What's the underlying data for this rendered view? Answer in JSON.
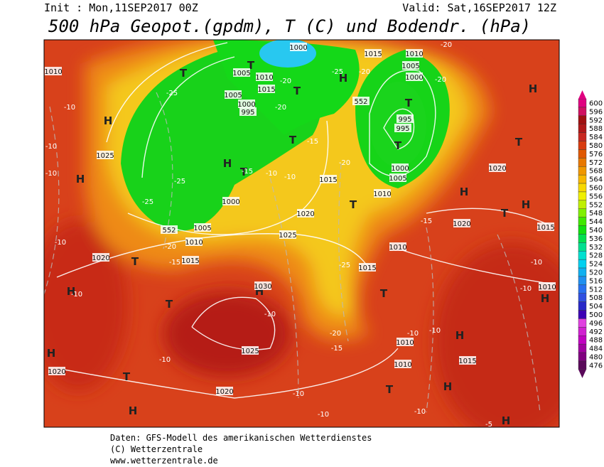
{
  "header": {
    "init": "Init : Mon,11SEP2017 00Z",
    "valid": "Valid: Sat,16SEP2017 12Z",
    "title": "500 hPa Geopot.(gpdm), T (C) und Bodendr. (hPa)"
  },
  "colorbar": {
    "ticks": [
      600,
      596,
      592,
      588,
      584,
      580,
      576,
      572,
      568,
      564,
      560,
      556,
      552,
      548,
      544,
      540,
      536,
      532,
      528,
      524,
      520,
      516,
      512,
      508,
      504,
      500,
      496,
      492,
      488,
      484,
      480,
      476
    ],
    "colors": [
      "#e00080",
      "#d01060",
      "#a01010",
      "#b01818",
      "#c82820",
      "#d83c10",
      "#e05800",
      "#e87800",
      "#f09800",
      "#f8b800",
      "#f8d800",
      "#f0f000",
      "#c0f000",
      "#80f000",
      "#40e800",
      "#10e010",
      "#00e050",
      "#00e090",
      "#00e0d0",
      "#00d0f0",
      "#10b0f0",
      "#2090f0",
      "#2870f0",
      "#3050e0",
      "#2828c8",
      "#3c00b4",
      "#e040e0",
      "#d020d0",
      "#c000c0",
      "#a000a0",
      "#800080",
      "#5a0a5a"
    ]
  },
  "map": {
    "highs_lows": [
      "H",
      "H",
      "H",
      "H",
      "H",
      "H",
      "H",
      "H",
      "H",
      "H",
      "H",
      "H",
      "H",
      "H",
      "H",
      "T",
      "T",
      "T",
      "T",
      "T",
      "T",
      "T",
      "T",
      "T",
      "T",
      "T",
      "T",
      "T",
      "T",
      "T"
    ],
    "isobar_labels": [
      "1010",
      "1025",
      "1000",
      "1005",
      "1010",
      "1015",
      "1020",
      "1025",
      "1020",
      "1030",
      "1025",
      "1020",
      "1020",
      "1010",
      "1015",
      "1010",
      "1015",
      "1010",
      "1020",
      "1020",
      "1015",
      "1010",
      "1015",
      "1010",
      "1005",
      "1000",
      "995",
      "995",
      "1000",
      "1005",
      "1010",
      "1015",
      "1000",
      "1005",
      "1010",
      "1015",
      "1005",
      "1000",
      "995",
      "552",
      "552"
    ],
    "temperature_labels": [
      "-25",
      "-20",
      "-15",
      "-25",
      "-25",
      "-10",
      "-10",
      "-10",
      "-10",
      "-10",
      "-10",
      "-10",
      "-10",
      "-10",
      "-10",
      "-10",
      "-10",
      "-10",
      "-10",
      "-5",
      "-20",
      "-15",
      "-25",
      "-15",
      "-20",
      "-15",
      "-10",
      "-10",
      "-15",
      "-20",
      "-20",
      "-25",
      "-20",
      "-20",
      "-20"
    ]
  },
  "footer": {
    "source": "Daten: GFS-Modell des amerikanischen Wetterdienstes",
    "copyright": "(C) Wetterzentrale",
    "url": "www.wetterzentrale.de"
  }
}
